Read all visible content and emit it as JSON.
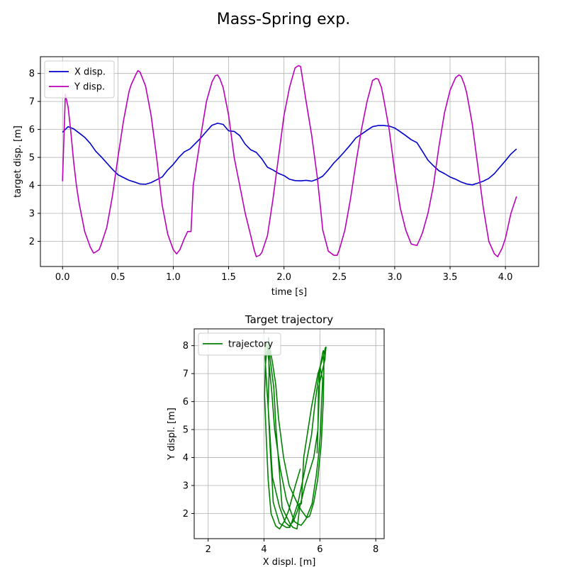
{
  "figure": {
    "title": "Mass-Spring exp."
  },
  "chart_data": [
    {
      "type": "line",
      "title": "",
      "xlabel": "time [s]",
      "ylabel": "target disp. [m]",
      "xlim": [
        -0.2,
        4.3
      ],
      "ylim": [
        1.1,
        8.6
      ],
      "xticks": [
        0.0,
        0.5,
        1.0,
        1.5,
        2.0,
        2.5,
        3.0,
        3.5,
        4.0
      ],
      "xtick_labels": [
        "0.0",
        "0.5",
        "1.0",
        "1.5",
        "2.0",
        "2.5",
        "3.0",
        "3.5",
        "4.0"
      ],
      "yticks": [
        2,
        3,
        4,
        5,
        6,
        7,
        8
      ],
      "ytick_labels": [
        "2",
        "3",
        "4",
        "5",
        "6",
        "7",
        "8"
      ],
      "grid": true,
      "legend_position": "upper-left",
      "series": [
        {
          "name": "X disp.",
          "color": "#0000cc",
          "x": [
            0,
            0.05,
            0.1,
            0.15,
            0.2,
            0.25,
            0.3,
            0.35,
            0.4,
            0.45,
            0.5,
            0.55,
            0.6,
            0.65,
            0.7,
            0.75,
            0.8,
            0.85,
            0.9,
            0.95,
            1.0,
            1.05,
            1.1,
            1.15,
            1.2,
            1.25,
            1.3,
            1.35,
            1.4,
            1.45,
            1.5,
            1.55,
            1.6,
            1.65,
            1.7,
            1.75,
            1.8,
            1.85,
            1.9,
            1.95,
            2.0,
            2.05,
            2.1,
            2.15,
            2.2,
            2.25,
            2.3,
            2.35,
            2.4,
            2.45,
            2.5,
            2.55,
            2.6,
            2.65,
            2.7,
            2.75,
            2.8,
            2.85,
            2.9,
            2.95,
            3.0,
            3.05,
            3.1,
            3.15,
            3.2,
            3.25,
            3.3,
            3.35,
            3.4,
            3.45,
            3.5,
            3.55,
            3.6,
            3.65,
            3.7,
            3.75,
            3.8,
            3.85,
            3.9,
            3.95,
            4.0,
            4.05,
            4.1
          ],
          "y": [
            5.9,
            6.1,
            6.02,
            5.87,
            5.72,
            5.5,
            5.22,
            5.02,
            4.8,
            4.58,
            4.38,
            4.28,
            4.18,
            4.12,
            4.05,
            4.04,
            4.1,
            4.2,
            4.3,
            4.55,
            4.75,
            5.0,
            5.2,
            5.3,
            5.5,
            5.7,
            5.93,
            6.15,
            6.22,
            6.18,
            5.95,
            5.93,
            5.78,
            5.47,
            5.27,
            5.18,
            4.95,
            4.65,
            4.55,
            4.43,
            4.35,
            4.22,
            4.17,
            4.16,
            4.18,
            4.15,
            4.22,
            4.33,
            4.55,
            4.8,
            5.0,
            5.22,
            5.45,
            5.7,
            5.83,
            5.97,
            6.1,
            6.14,
            6.14,
            6.12,
            6.05,
            5.92,
            5.78,
            5.63,
            5.53,
            5.22,
            4.9,
            4.7,
            4.52,
            4.42,
            4.3,
            4.22,
            4.12,
            4.05,
            4.02,
            4.08,
            4.15,
            4.25,
            4.42,
            4.65,
            4.88,
            5.12,
            5.3
          ]
        },
        {
          "name": "Y disp.",
          "color": "#bb00bb",
          "x": [
            0,
            0.025,
            0.05,
            0.075,
            0.1,
            0.125,
            0.15,
            0.2,
            0.25,
            0.28,
            0.3,
            0.33,
            0.35,
            0.4,
            0.45,
            0.5,
            0.55,
            0.6,
            0.62,
            0.66,
            0.68,
            0.7,
            0.75,
            0.8,
            0.85,
            0.9,
            0.95,
            1.0,
            1.03,
            1.06,
            1.1,
            1.13,
            1.16,
            1.18,
            1.2,
            1.25,
            1.3,
            1.35,
            1.38,
            1.4,
            1.42,
            1.45,
            1.5,
            1.55,
            1.6,
            1.65,
            1.7,
            1.73,
            1.75,
            1.78,
            1.8,
            1.85,
            1.9,
            1.95,
            2.0,
            2.05,
            2.1,
            2.13,
            2.15,
            2.18,
            2.2,
            2.25,
            2.3,
            2.33,
            2.35,
            2.4,
            2.45,
            2.48,
            2.5,
            2.55,
            2.6,
            2.65,
            2.7,
            2.75,
            2.8,
            2.83,
            2.85,
            2.88,
            2.9,
            2.95,
            3.0,
            3.05,
            3.1,
            3.15,
            3.2,
            3.23,
            3.25,
            3.3,
            3.35,
            3.4,
            3.45,
            3.5,
            3.55,
            3.58,
            3.6,
            3.63,
            3.65,
            3.7,
            3.75,
            3.8,
            3.85,
            3.9,
            3.93,
            3.95,
            3.97,
            4.0,
            4.05,
            4.1
          ],
          "y": [
            4.15,
            7.25,
            6.8,
            5.9,
            4.85,
            4.0,
            3.35,
            2.35,
            1.8,
            1.58,
            1.62,
            1.7,
            1.9,
            2.5,
            3.6,
            5.0,
            6.3,
            7.35,
            7.6,
            7.95,
            8.1,
            8.05,
            7.55,
            6.5,
            5.0,
            3.3,
            2.25,
            1.7,
            1.55,
            1.7,
            2.1,
            2.35,
            2.35,
            4.0,
            4.5,
            5.8,
            7.0,
            7.7,
            7.92,
            7.95,
            7.82,
            7.5,
            6.5,
            5.0,
            4.0,
            3.0,
            2.2,
            1.7,
            1.45,
            1.5,
            1.6,
            2.2,
            3.5,
            5.0,
            6.5,
            7.5,
            8.2,
            8.28,
            8.25,
            7.5,
            7.0,
            5.8,
            4.3,
            3.2,
            2.4,
            1.65,
            1.5,
            1.5,
            1.7,
            2.4,
            3.5,
            4.8,
            6.0,
            7.0,
            7.75,
            7.82,
            7.8,
            7.5,
            7.1,
            6.0,
            4.5,
            3.2,
            2.4,
            1.9,
            1.85,
            2.1,
            2.3,
            3.0,
            4.0,
            5.4,
            6.6,
            7.4,
            7.85,
            7.95,
            7.9,
            7.6,
            7.3,
            6.2,
            4.7,
            3.2,
            2.0,
            1.55,
            1.45,
            1.6,
            1.75,
            2.1,
            3.0,
            3.6
          ]
        }
      ]
    },
    {
      "type": "line",
      "title": "Target trajectory",
      "xlabel": "X displ. [m]",
      "ylabel": "Y displ. [m]",
      "xlim": [
        1.5,
        8.3
      ],
      "ylim": [
        1.1,
        8.6
      ],
      "xticks": [
        2,
        4,
        6,
        8
      ],
      "xtick_labels": [
        "2",
        "4",
        "6",
        "8"
      ],
      "yticks": [
        2,
        3,
        4,
        5,
        6,
        7,
        8
      ],
      "ytick_labels": [
        "2",
        "3",
        "4",
        "5",
        "6",
        "7",
        "8"
      ],
      "grid": true,
      "legend_position": "upper-left",
      "series": [
        {
          "name": "trajectory",
          "color": "#008000",
          "source": "parametric: X disp. vs Y disp. of the first chart"
        }
      ]
    }
  ]
}
